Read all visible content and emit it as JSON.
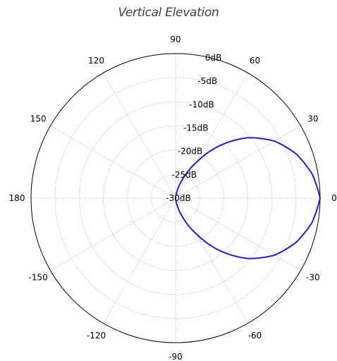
{
  "chart_data": {
    "type": "line",
    "projection": "polar",
    "title": "Vertical Elevation",
    "angle_unit": "degrees",
    "angle_ticks": [
      "0",
      "30",
      "60",
      "90",
      "120",
      "150",
      "180",
      "-150",
      "-120",
      "-90",
      "-60",
      "-30"
    ],
    "angle_tick_values": [
      0,
      30,
      60,
      90,
      120,
      150,
      180,
      -150,
      -120,
      -90,
      -60,
      -30
    ],
    "radial_ticks": [
      "0dB",
      "-5dB",
      "-10dB",
      "-15dB",
      "-20dB",
      "-25dB",
      "-30dB"
    ],
    "radial_tick_values": [
      0,
      -5,
      -10,
      -15,
      -20,
      -25,
      -30
    ],
    "rlim": [
      -30,
      0
    ],
    "grid": true,
    "series": [
      {
        "color": "#1f1fd6",
        "points": [
          {
            "theta": 0,
            "r": 0
          },
          {
            "theta": 10,
            "r": -1.2
          },
          {
            "theta": 20,
            "r": -3.3
          },
          {
            "theta": 30,
            "r": -6.3
          },
          {
            "theta": 40,
            "r": -10.5
          },
          {
            "theta": 50,
            "r": -15.8
          },
          {
            "theta": 60,
            "r": -21.5
          },
          {
            "theta": 70,
            "r": -26.0
          },
          {
            "theta": 80,
            "r": -29.2
          },
          {
            "theta": 90,
            "r": -30
          },
          {
            "theta": -10,
            "r": -1.2
          },
          {
            "theta": -20,
            "r": -3.3
          },
          {
            "theta": -30,
            "r": -6.3
          },
          {
            "theta": -40,
            "r": -10.5
          },
          {
            "theta": -50,
            "r": -15.8
          },
          {
            "theta": -60,
            "r": -21.5
          },
          {
            "theta": -70,
            "r": -26.0
          },
          {
            "theta": -80,
            "r": -29.2
          },
          {
            "theta": -90,
            "r": -30
          }
        ]
      }
    ]
  }
}
